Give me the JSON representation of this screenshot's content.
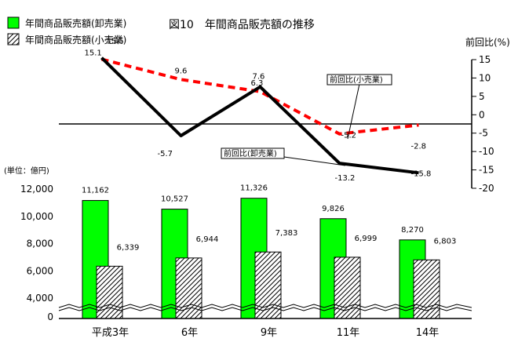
{
  "chart_data": [
    {
      "type": "line",
      "title": "図10　年間商品販売額の推移",
      "ylabel": "前回比(%)",
      "categories": [
        "平成3年",
        "6年",
        "9年",
        "11年",
        "14年"
      ],
      "ylim": [
        -20,
        15
      ],
      "yticks": [
        15,
        10,
        5,
        0,
        -5,
        -10,
        -15,
        -20
      ],
      "series": [
        {
          "name": "前回比(卸売業)",
          "values": [
            15.5,
            -5.7,
            7.6,
            -13.2,
            -15.8
          ],
          "color": "#000000",
          "style": "solid"
        },
        {
          "name": "前回比(小売業)",
          "values": [
            15.1,
            9.6,
            6.3,
            -5.2,
            -2.8
          ],
          "color": "#ff0000",
          "style": "dashed"
        }
      ],
      "data_labels": [
        {
          "text": "15.5",
          "series": 0,
          "index": 0
        },
        {
          "text": "15.1",
          "series": 1,
          "index": 0
        },
        {
          "text": "9.6",
          "series": 1,
          "index": 1
        },
        {
          "text": "-5.7",
          "series": 0,
          "index": 1
        },
        {
          "text": "7.6",
          "series": 0,
          "index": 2
        },
        {
          "text": "6.3",
          "series": 1,
          "index": 2
        },
        {
          "text": "-5.2",
          "series": 1,
          "index": 3
        },
        {
          "text": "-13.2",
          "series": 0,
          "index": 3
        },
        {
          "text": "-2.8",
          "series": 1,
          "index": 4
        },
        {
          "text": "-15.8",
          "series": 0,
          "index": 4
        }
      ]
    },
    {
      "type": "bar",
      "unit": "(単位：億円)",
      "categories": [
        "平成3年",
        "6年",
        "9年",
        "11年",
        "14年"
      ],
      "ylim": [
        0,
        12000
      ],
      "yticks": [
        "12,000",
        "10,000",
        "8,000",
        "6,000",
        "4,000",
        "0"
      ],
      "axis_break": true,
      "series": [
        {
          "name": "年間商品販売額(卸売業)",
          "values": [
            11162,
            10527,
            11326,
            9826,
            8270
          ],
          "labels": [
            "11,162",
            "10,527",
            "11,326",
            "9,826",
            "8,270"
          ],
          "color": "#00ff00"
        },
        {
          "name": "年間商品販売額(小売業)",
          "values": [
            6339,
            6944,
            7383,
            6999,
            6803
          ],
          "labels": [
            "6,339",
            "6,944",
            "7,383",
            "6,999",
            "6,803"
          ],
          "color": "#ffffff",
          "pattern": "hatched"
        }
      ]
    }
  ]
}
